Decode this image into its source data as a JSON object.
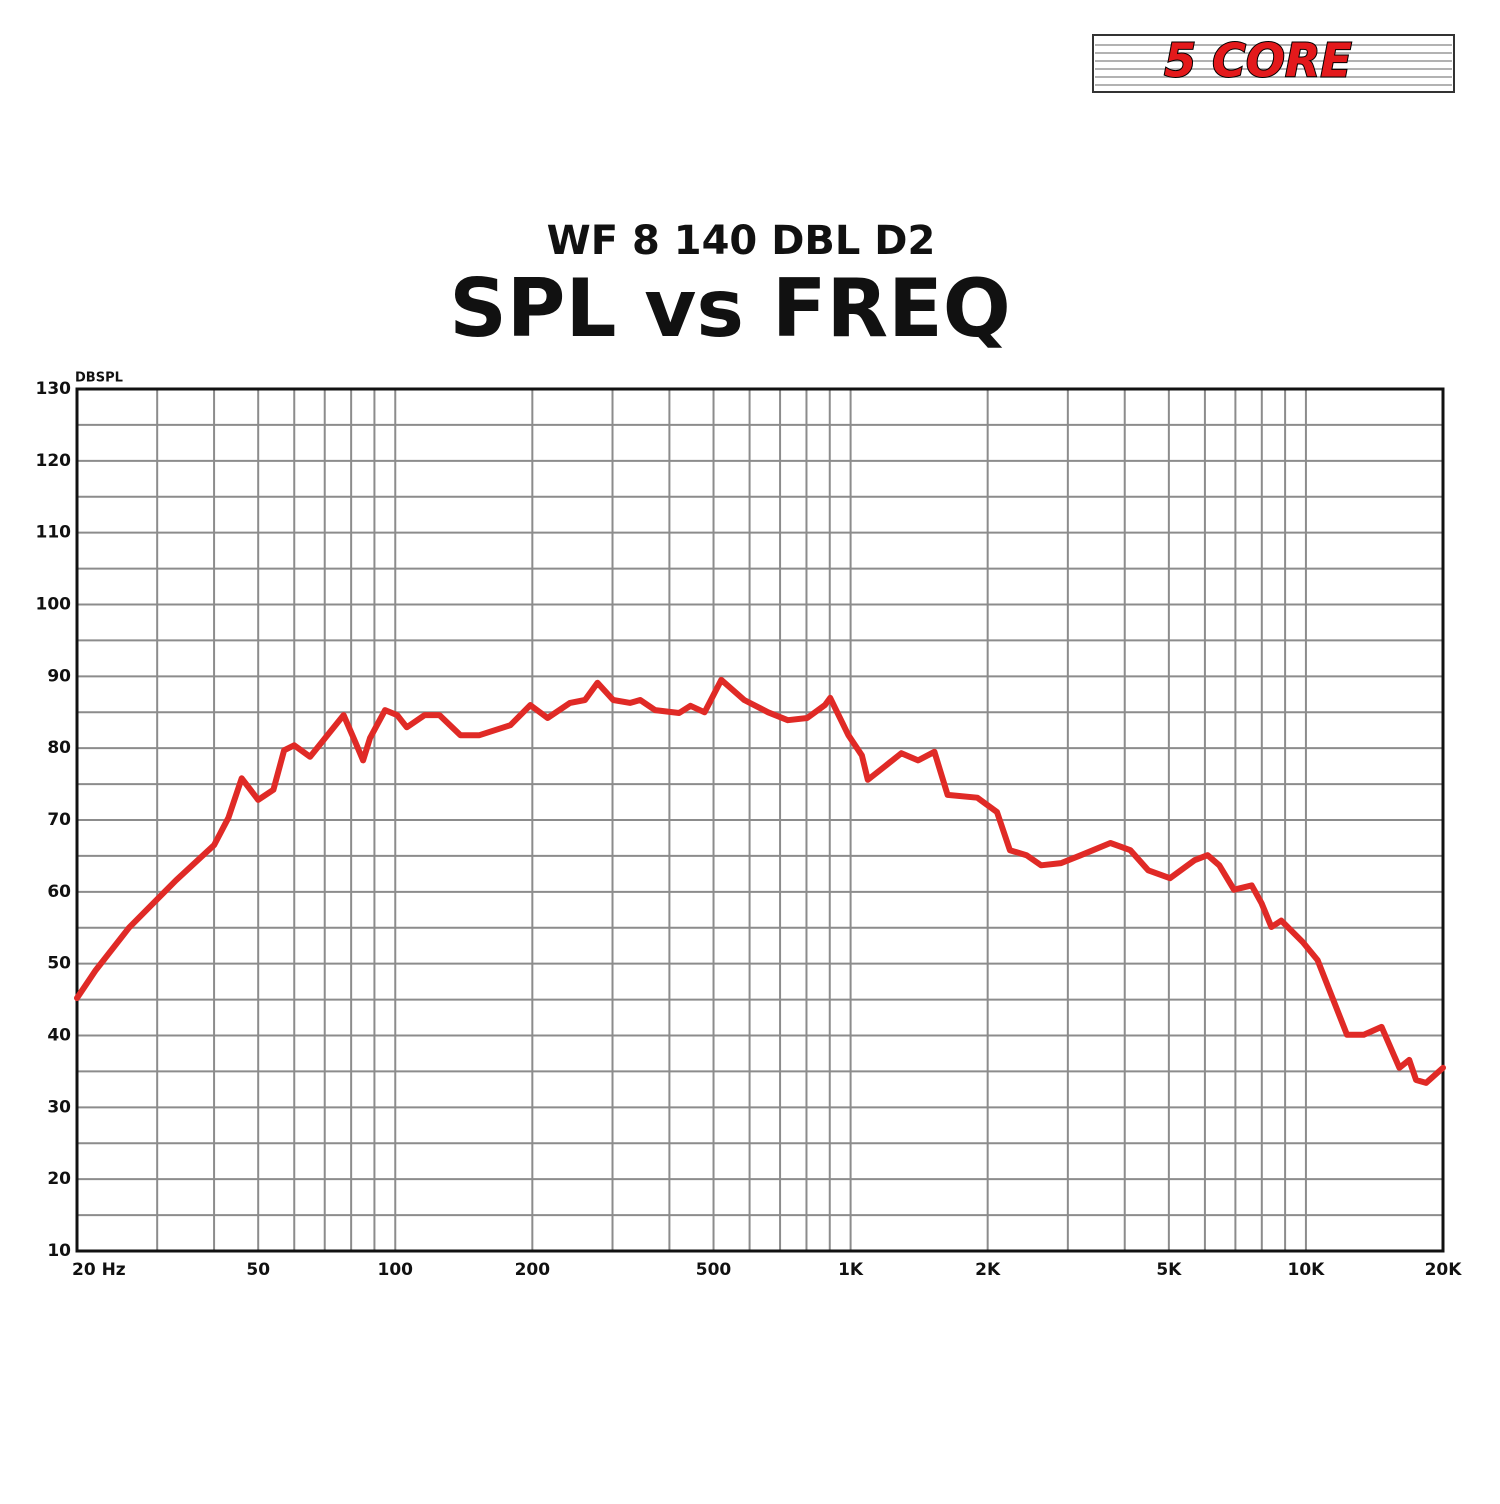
{
  "logo": "5 CORE",
  "chart_data": {
    "type": "line",
    "subtitle": "WF 8 140 DBL D2",
    "title": "SPL vs FREQ",
    "y_label": "DBSPL",
    "xscale": "log",
    "grid": true,
    "xlim": [
      20,
      20000
    ],
    "ylim": [
      10,
      130
    ],
    "xticks": [
      {
        "value": 20,
        "label": "20 Hz"
      },
      50,
      100,
      200,
      500,
      {
        "value": 1000,
        "label": "1K"
      },
      {
        "value": 2000,
        "label": "2K"
      },
      {
        "value": 5000,
        "label": "5K"
      },
      {
        "value": 10000,
        "label": "10K"
      },
      {
        "value": 20000,
        "label": "20K"
      }
    ],
    "yticks": [
      10,
      20,
      30,
      40,
      50,
      60,
      70,
      80,
      90,
      100,
      110,
      120,
      130
    ],
    "x_minor_grid": [
      30,
      40,
      60,
      70,
      80,
      90,
      300,
      400,
      600,
      700,
      800,
      900,
      3000,
      4000,
      6000,
      7000,
      8000,
      9000
    ],
    "y_minor_grid": [
      15,
      25,
      35,
      45,
      55,
      65,
      75,
      85,
      95,
      105,
      115,
      125
    ],
    "x": [
      20,
      22,
      26,
      33,
      40,
      43,
      46,
      50,
      54,
      57,
      60,
      65,
      77,
      81,
      85,
      88,
      95,
      101,
      106,
      116,
      125,
      139,
      153,
      179,
      198,
      216,
      242,
      261,
      278,
      301,
      328,
      345,
      372,
      420,
      445,
      478,
      520,
      584,
      659,
      728,
      803,
      878,
      902,
      989,
      1059,
      1091,
      1186,
      1293,
      1407,
      1528,
      1633,
      1898,
      2097,
      2238,
      2434,
      2621,
      2899,
      3205,
      3721,
      4116,
      4504,
      5028,
      5696,
      6082,
      6453,
      6949,
      7602,
      7992,
      8397,
      8827,
      9845,
      10610,
      12310,
      13400,
      14660,
      16040,
      16860,
      17460,
      18360,
      20000
    ],
    "series": [
      {
        "color": "#e02a26",
        "values": [
          45.2,
          49.1,
          55.0,
          61.6,
          66.5,
          70.3,
          75.8,
          72.8,
          74.2,
          79.7,
          80.4,
          78.8,
          84.6,
          81.4,
          78.3,
          81.4,
          85.3,
          84.6,
          82.9,
          84.6,
          84.6,
          81.8,
          81.8,
          83.2,
          86.0,
          84.2,
          86.3,
          86.7,
          89.1,
          86.7,
          86.3,
          86.7,
          85.3,
          84.9,
          85.9,
          85.0,
          89.5,
          86.7,
          85.0,
          83.9,
          84.2,
          86.0,
          87.0,
          81.8,
          79.0,
          75.6,
          77.4,
          79.3,
          78.3,
          79.5,
          73.5,
          73.1,
          71.1,
          65.8,
          65.1,
          63.7,
          64.0,
          65.1,
          66.8,
          65.8,
          63.0,
          61.9,
          64.4,
          65.1,
          63.7,
          60.3,
          60.9,
          58.4,
          55.1,
          56.0,
          53.0,
          50.5,
          40.1,
          40.1,
          41.2,
          35.5,
          36.6,
          33.8,
          33.4,
          35.5
        ]
      }
    ]
  }
}
